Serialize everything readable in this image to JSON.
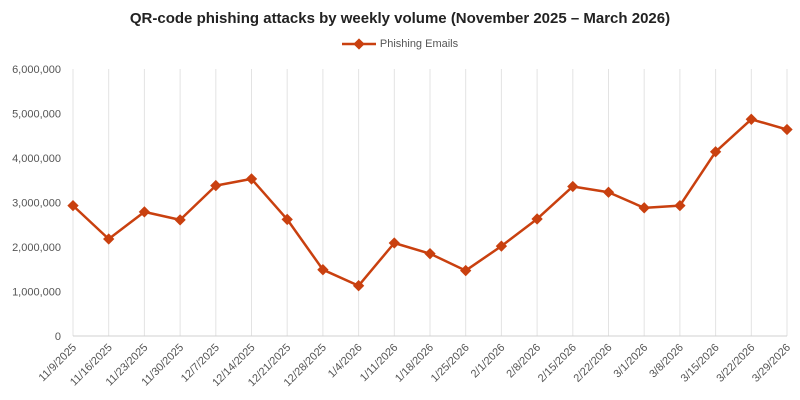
{
  "chart_data": {
    "type": "line",
    "title": "QR-code phishing attacks by weekly volume (November 2025 – March 2026)",
    "xlabel": "",
    "ylabel": "",
    "categories": [
      "11/9/2025",
      "11/16/2025",
      "11/23/2025",
      "11/30/2025",
      "12/7/2025",
      "12/14/2025",
      "12/21/2025",
      "12/28/2025",
      "1/4/2026",
      "1/11/2026",
      "1/18/2026",
      "1/25/2026",
      "2/1/2026",
      "2/8/2026",
      "2/15/2026",
      "2/22/2026",
      "3/1/2026",
      "3/8/2026",
      "3/15/2026",
      "3/22/2026",
      "3/29/2026"
    ],
    "series": [
      {
        "name": "Phishing Emails",
        "color": "#c9400f",
        "values": [
          2930000,
          2180000,
          2790000,
          2610000,
          3380000,
          3530000,
          2620000,
          1490000,
          1130000,
          2090000,
          1850000,
          1470000,
          2020000,
          2630000,
          3360000,
          3230000,
          2880000,
          2930000,
          4140000,
          4870000,
          4640000
        ]
      }
    ],
    "ylim": [
      0,
      6000000
    ],
    "yticks": [
      "0",
      "1,000,000",
      "2,000,000",
      "3,000,000",
      "4,000,000",
      "5,000,000",
      "6,000,000"
    ],
    "grid": "vertical",
    "legend": "top-center"
  }
}
